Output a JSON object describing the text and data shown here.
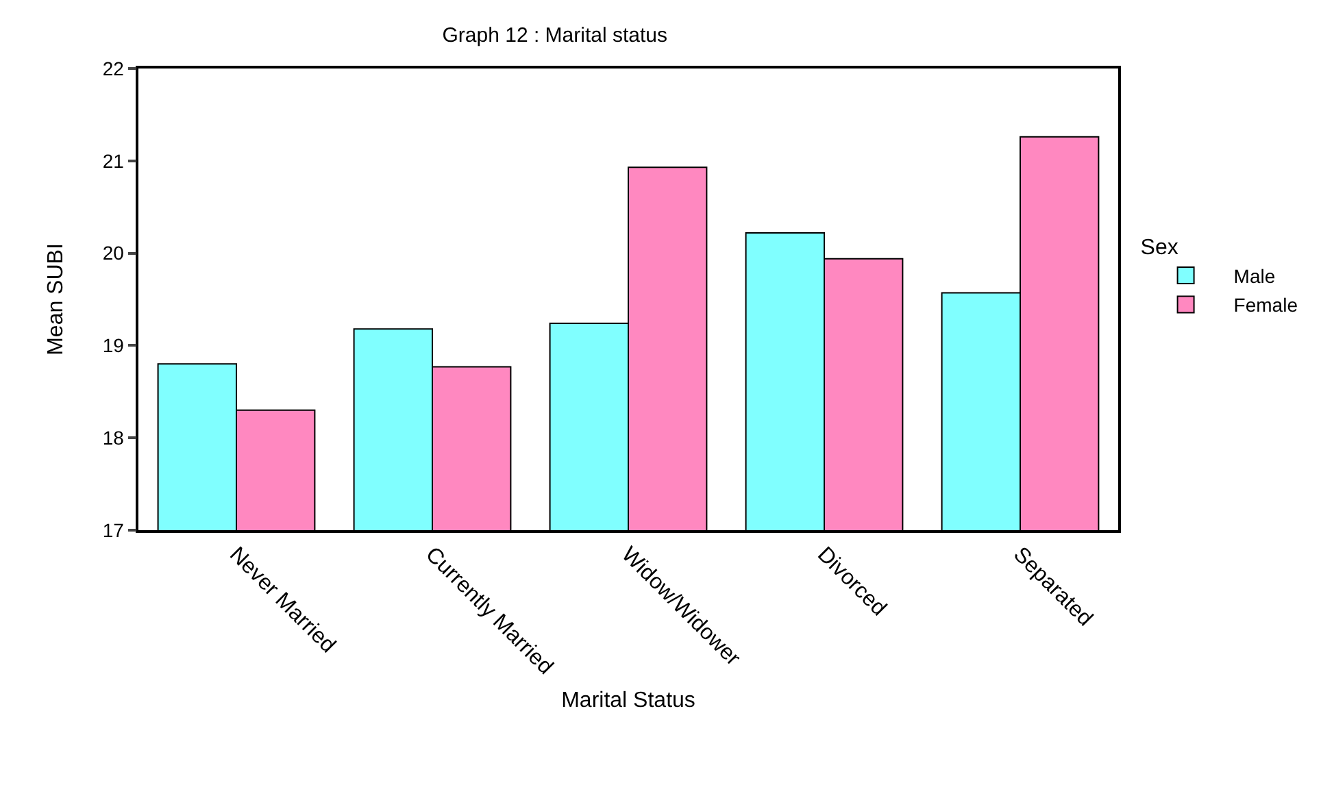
{
  "chart_data": {
    "type": "bar",
    "title": "Graph 12 : Marital status",
    "xlabel": "Marital Status",
    "ylabel": "Mean SUBI",
    "legend_title": "Sex",
    "legend": "right",
    "grid": false,
    "categories": [
      "Never Married",
      "Currently Married",
      "Widow/Widower",
      "Divorced",
      "Separated"
    ],
    "series": [
      {
        "name": "Male",
        "color": "#80ffff",
        "values": [
          18.8,
          19.18,
          19.24,
          20.22,
          19.57
        ]
      },
      {
        "name": "Female",
        "color": "#ff88c0",
        "values": [
          18.3,
          18.77,
          20.93,
          19.94,
          21.26
        ]
      }
    ],
    "ylim": [
      17,
      22
    ],
    "yticks": [
      17,
      18,
      19,
      20,
      21,
      22
    ]
  }
}
